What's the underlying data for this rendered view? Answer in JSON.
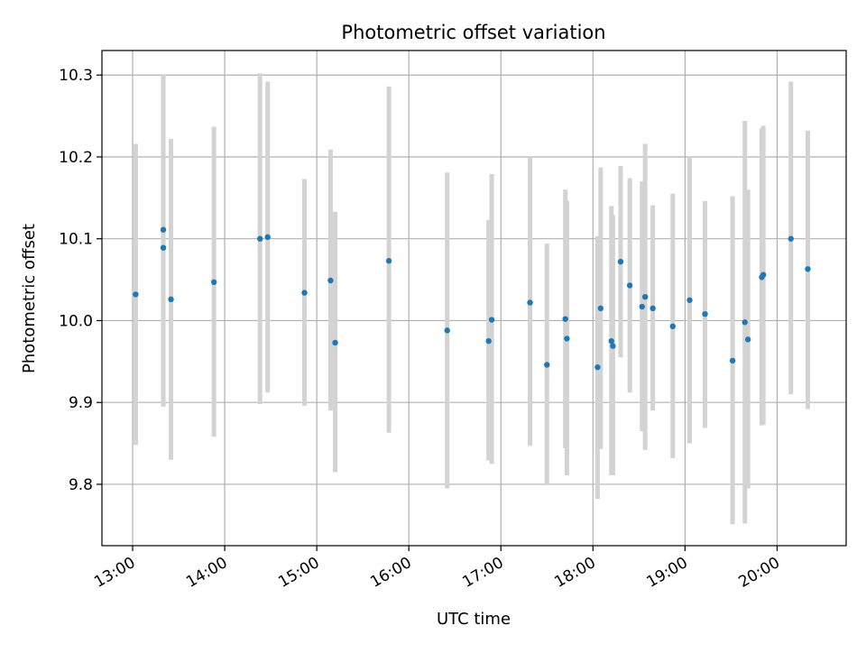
{
  "chart_data": {
    "type": "scatter",
    "title": "Photometric offset variation",
    "xlabel": "UTC time",
    "ylabel": "Photometric offset",
    "x_axis_kind": "time",
    "xlim": [
      "12:40",
      "20:45"
    ],
    "ylim": [
      9.725,
      10.33
    ],
    "x_ticks": [
      "13:00",
      "14:00",
      "15:00",
      "16:00",
      "17:00",
      "18:00",
      "19:00",
      "20:00"
    ],
    "y_ticks": [
      "9.8",
      "9.9",
      "10.0",
      "10.1",
      "10.2",
      "10.3"
    ],
    "grid": true,
    "legend": "none",
    "colors": {
      "points": "#1f77b4",
      "error_bars": "#d3d3d3",
      "grid": "#b0b0b0"
    },
    "points": [
      {
        "x": "13:02",
        "y": 10.032,
        "yerr_low": 9.848,
        "yerr_high": 10.216
      },
      {
        "x": "13:20",
        "y": 10.111,
        "yerr_low": 9.895,
        "yerr_high": 10.3
      },
      {
        "x": "13:20",
        "y": 10.089,
        "yerr_low": 9.895,
        "yerr_high": 10.3
      },
      {
        "x": "13:25",
        "y": 10.026,
        "yerr_low": 9.83,
        "yerr_high": 10.222
      },
      {
        "x": "13:53",
        "y": 10.047,
        "yerr_low": 9.858,
        "yerr_high": 10.237
      },
      {
        "x": "14:23",
        "y": 10.1,
        "yerr_low": 9.898,
        "yerr_high": 10.302
      },
      {
        "x": "14:28",
        "y": 10.102,
        "yerr_low": 9.912,
        "yerr_high": 10.292
      },
      {
        "x": "14:52",
        "y": 10.034,
        "yerr_low": 9.896,
        "yerr_high": 10.173
      },
      {
        "x": "15:09",
        "y": 10.049,
        "yerr_low": 9.89,
        "yerr_high": 10.209
      },
      {
        "x": "15:12",
        "y": 9.973,
        "yerr_low": 9.815,
        "yerr_high": 10.133
      },
      {
        "x": "15:47",
        "y": 10.073,
        "yerr_low": 9.863,
        "yerr_high": 10.286
      },
      {
        "x": "16:25",
        "y": 9.988,
        "yerr_low": 9.795,
        "yerr_high": 10.181
      },
      {
        "x": "16:52",
        "y": 9.975,
        "yerr_low": 9.829,
        "yerr_high": 10.123
      },
      {
        "x": "16:54",
        "y": 10.001,
        "yerr_low": 9.825,
        "yerr_high": 10.179
      },
      {
        "x": "17:19",
        "y": 10.022,
        "yerr_low": 9.847,
        "yerr_high": 10.2
      },
      {
        "x": "17:30",
        "y": 9.946,
        "yerr_low": 9.8,
        "yerr_high": 10.094
      },
      {
        "x": "17:42",
        "y": 10.002,
        "yerr_low": 9.844,
        "yerr_high": 10.16
      },
      {
        "x": "17:43",
        "y": 9.978,
        "yerr_low": 9.811,
        "yerr_high": 10.146
      },
      {
        "x": "18:03",
        "y": 9.943,
        "yerr_low": 9.782,
        "yerr_high": 10.103
      },
      {
        "x": "18:05",
        "y": 10.015,
        "yerr_low": 9.843,
        "yerr_high": 10.187
      },
      {
        "x": "18:12",
        "y": 9.975,
        "yerr_low": 9.811,
        "yerr_high": 10.14
      },
      {
        "x": "18:13",
        "y": 9.969,
        "yerr_low": 9.811,
        "yerr_high": 10.129
      },
      {
        "x": "18:18",
        "y": 10.072,
        "yerr_low": 9.955,
        "yerr_high": 10.189
      },
      {
        "x": "18:24",
        "y": 10.043,
        "yerr_low": 9.912,
        "yerr_high": 10.174
      },
      {
        "x": "18:32",
        "y": 10.017,
        "yerr_low": 9.865,
        "yerr_high": 10.17
      },
      {
        "x": "18:34",
        "y": 10.029,
        "yerr_low": 9.842,
        "yerr_high": 10.216
      },
      {
        "x": "18:39",
        "y": 10.015,
        "yerr_low": 9.89,
        "yerr_high": 10.141
      },
      {
        "x": "18:52",
        "y": 9.993,
        "yerr_low": 9.832,
        "yerr_high": 10.155
      },
      {
        "x": "19:03",
        "y": 10.025,
        "yerr_low": 9.85,
        "yerr_high": 10.2
      },
      {
        "x": "19:13",
        "y": 10.008,
        "yerr_low": 9.869,
        "yerr_high": 10.146
      },
      {
        "x": "19:31",
        "y": 9.951,
        "yerr_low": 9.751,
        "yerr_high": 10.152
      },
      {
        "x": "19:39",
        "y": 9.998,
        "yerr_low": 9.752,
        "yerr_high": 10.244
      },
      {
        "x": "19:41",
        "y": 9.977,
        "yerr_low": 9.795,
        "yerr_high": 10.16
      },
      {
        "x": "19:50",
        "y": 10.053,
        "yerr_low": 9.872,
        "yerr_high": 10.235
      },
      {
        "x": "19:51",
        "y": 10.056,
        "yerr_low": 9.873,
        "yerr_high": 10.238
      },
      {
        "x": "20:09",
        "y": 10.1,
        "yerr_low": 9.91,
        "yerr_high": 10.292
      },
      {
        "x": "20:20",
        "y": 10.063,
        "yerr_low": 9.892,
        "yerr_high": 10.232
      }
    ]
  }
}
